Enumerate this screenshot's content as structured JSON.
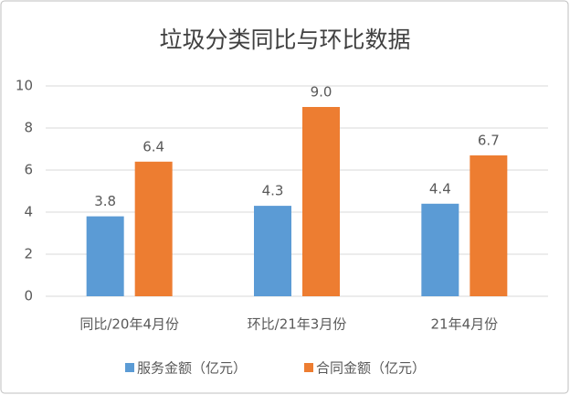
{
  "chart_data": {
    "type": "bar",
    "title": "垃圾分类同比与环比数据",
    "categories": [
      "同比/20年4月份",
      "环比/21年3月份",
      "21年4月份"
    ],
    "series": [
      {
        "name": "服务金额（亿元）",
        "color": "#5b9bd5",
        "values": [
          3.8,
          4.3,
          4.4
        ],
        "value_labels": [
          "3.8",
          "4.3",
          "4.4"
        ]
      },
      {
        "name": "合同金额（亿元）",
        "color": "#ed7d31",
        "values": [
          6.4,
          9.0,
          6.7
        ],
        "value_labels": [
          "6.4",
          "9.0",
          "6.7"
        ]
      }
    ],
    "ylim": [
      0,
      10
    ],
    "yticks": [
      0,
      2,
      4,
      6,
      8,
      10
    ],
    "grid": true,
    "legend": "bottom"
  }
}
